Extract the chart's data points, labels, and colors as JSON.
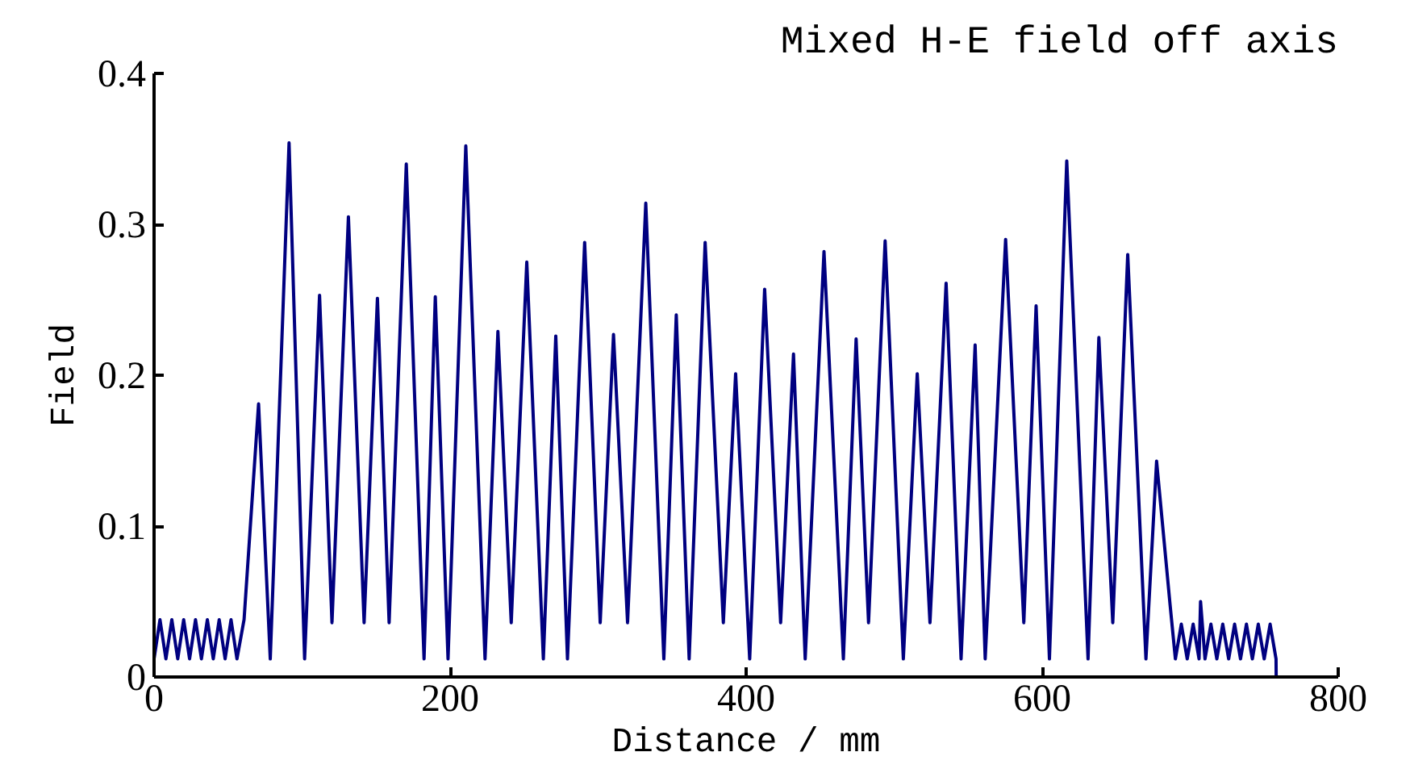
{
  "chart_data": {
    "type": "line",
    "title": "Mixed H-E field off axis",
    "xlabel": "Distance / mm",
    "ylabel": "Field",
    "xlim": [
      0,
      800
    ],
    "ylim": [
      0,
      0.4
    ],
    "xticks": [
      0,
      200,
      400,
      600,
      800
    ],
    "yticks": [
      0,
      0.1,
      0.2,
      0.3,
      0.4
    ],
    "grid": false,
    "marker": "none",
    "line_style": "solid",
    "series": [
      {
        "color": "#000080",
        "x": [
          0,
          4,
          8,
          12,
          16,
          20,
          24,
          28,
          32,
          36,
          40,
          44,
          48,
          52,
          56,
          60.8,
          70.6,
          78.5,
          91.2,
          101.7,
          111.8,
          120.2,
          131.3,
          141.9,
          150.9,
          158.8,
          170.4,
          182.4,
          190.0,
          198.6,
          210.6,
          223.6,
          232.3,
          241.3,
          251.8,
          263.0,
          271.4,
          279.3,
          290.9,
          301.4,
          310.4,
          319.9,
          332.2,
          344.4,
          352.8,
          361.5,
          372.3,
          384.6,
          392.9,
          402.4,
          412.5,
          423.3,
          432.0,
          439.9,
          452.6,
          465.7,
          474.3,
          482.7,
          493.9,
          506.2,
          515.6,
          524.2,
          535.1,
          545.2,
          554.7,
          561.5,
          575.3,
          587.6,
          595.9,
          604.9,
          616.6,
          631.0,
          638.3,
          647.7,
          657.8,
          670.1,
          677.3,
          686.3,
          690,
          694,
          698,
          702,
          706,
          707,
          710,
          714,
          718,
          722,
          726,
          730,
          734,
          738,
          742,
          746,
          750,
          754,
          758,
          758.1
        ],
        "values": [
          0.012,
          0.038,
          0.012,
          0.038,
          0.012,
          0.038,
          0.012,
          0.038,
          0.012,
          0.038,
          0.012,
          0.038,
          0.012,
          0.038,
          0.012,
          0.038,
          0.181,
          0.012,
          0.354,
          0.012,
          0.253,
          0.036,
          0.305,
          0.036,
          0.251,
          0.036,
          0.34,
          0.012,
          0.252,
          0.012,
          0.352,
          0.012,
          0.229,
          0.036,
          0.275,
          0.012,
          0.226,
          0.012,
          0.288,
          0.036,
          0.227,
          0.036,
          0.314,
          0.012,
          0.24,
          0.012,
          0.288,
          0.036,
          0.201,
          0.012,
          0.257,
          0.036,
          0.214,
          0.012,
          0.282,
          0.012,
          0.224,
          0.036,
          0.289,
          0.012,
          0.201,
          0.036,
          0.261,
          0.012,
          0.22,
          0.012,
          0.29,
          0.036,
          0.246,
          0.012,
          0.342,
          0.012,
          0.225,
          0.036,
          0.28,
          0.012,
          0.143,
          0.049,
          0.012,
          0.035,
          0.012,
          0.035,
          0.012,
          0.05,
          0.012,
          0.035,
          0.012,
          0.035,
          0.012,
          0.035,
          0.012,
          0.035,
          0.012,
          0.035,
          0.012,
          0.035,
          0.012,
          0
        ]
      }
    ]
  }
}
